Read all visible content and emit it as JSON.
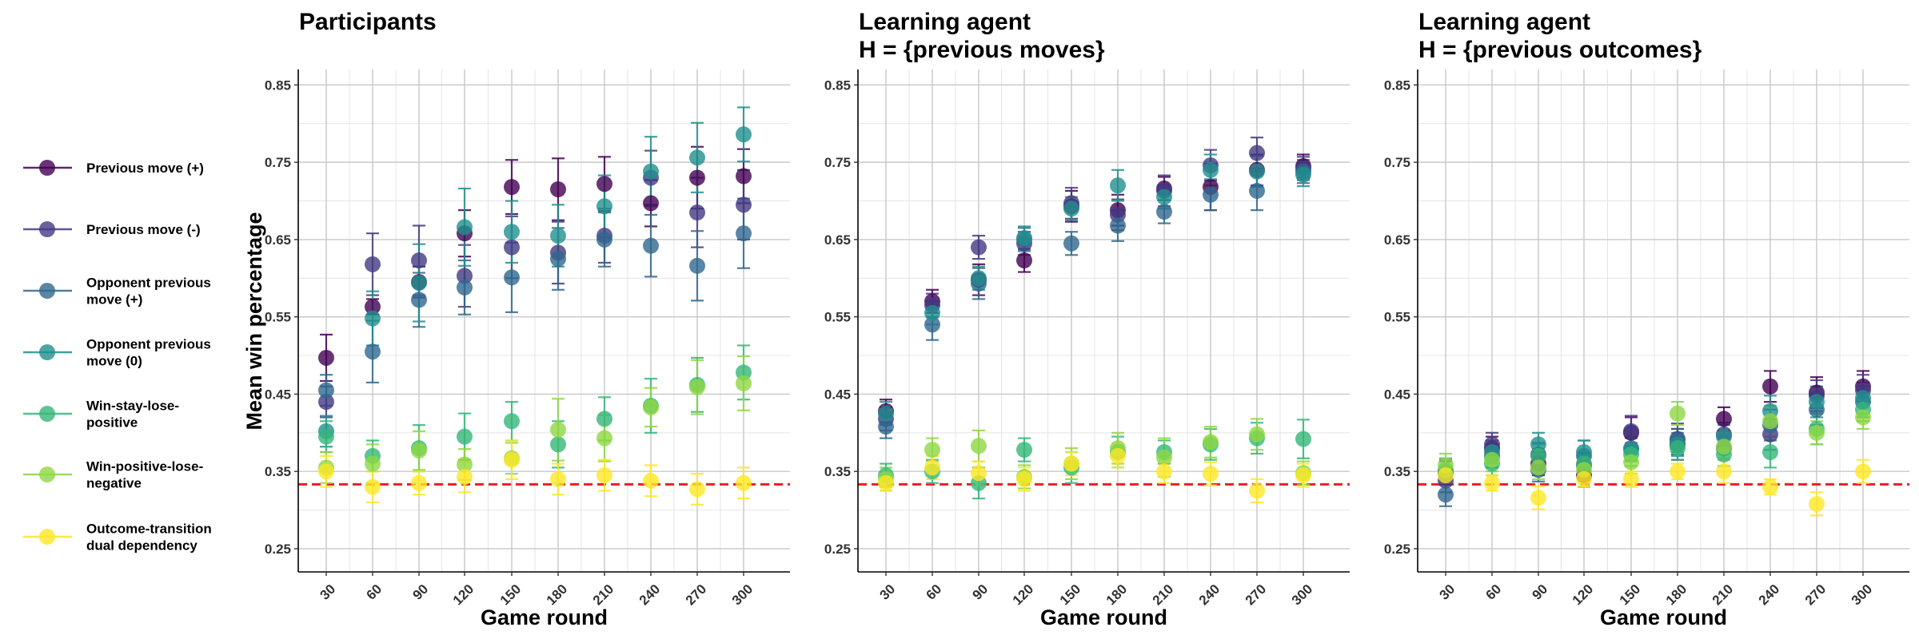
{
  "ylabel": "Mean win percentage",
  "reference_line": {
    "value": 0.3333,
    "color": "#ee1c24"
  },
  "legend": [
    {
      "lines": [
        "Previous move (+)"
      ],
      "color": "#440154"
    },
    {
      "lines": [
        "Previous move (-)"
      ],
      "color": "#443a83"
    },
    {
      "lines": [
        "Opponent previous",
        "move (+)"
      ],
      "color": "#31688e"
    },
    {
      "lines": [
        "Opponent previous",
        "move (0)"
      ],
      "color": "#21908d"
    },
    {
      "lines": [
        "Win-stay-lose-",
        "positive"
      ],
      "color": "#35b779"
    },
    {
      "lines": [
        "Win-positive-lose-",
        "negative"
      ],
      "color": "#8fd744"
    },
    {
      "lines": [
        "Outcome-transition",
        "dual dependency"
      ],
      "color": "#fde725"
    }
  ],
  "chart_data": [
    {
      "type": "scatter",
      "title": [
        "Participants"
      ],
      "xlabel": "Game round",
      "ylabel": "Mean win percentage",
      "x": [
        30,
        60,
        90,
        120,
        150,
        180,
        210,
        240,
        270,
        300
      ],
      "ylim": [
        0.22,
        0.87
      ],
      "yticks": [
        0.25,
        0.35,
        0.45,
        0.55,
        0.65,
        0.75,
        0.85
      ],
      "grid": true,
      "series": [
        {
          "name": "Previous move (+)",
          "values": [
            0.497,
            0.563,
            0.595,
            0.658,
            0.718,
            0.715,
            0.722,
            0.697,
            0.73,
            0.732
          ],
          "error": [
            0.03,
            0.01,
            0.02,
            0.03,
            0.035,
            0.04,
            0.035,
            0.03,
            0.04,
            0.035
          ]
        },
        {
          "name": "Previous move (-)",
          "values": [
            0.44,
            0.618,
            0.623,
            0.603,
            0.64,
            0.633,
            0.655,
            0.73,
            0.685,
            0.695
          ],
          "error": [
            0.02,
            0.04,
            0.045,
            0.04,
            0.04,
            0.04,
            0.035,
            0.035,
            0.045,
            0.045
          ]
        },
        {
          "name": "Opponent previous move (+)",
          "values": [
            0.455,
            0.505,
            0.572,
            0.588,
            0.601,
            0.625,
            0.65,
            0.642,
            0.616,
            0.658
          ],
          "error": [
            0.02,
            0.04,
            0.035,
            0.035,
            0.045,
            0.04,
            0.035,
            0.04,
            0.045,
            0.045
          ]
        },
        {
          "name": "Opponent previous move (0)",
          "values": [
            0.402,
            0.548,
            0.594,
            0.666,
            0.66,
            0.655,
            0.693,
            0.738,
            0.756,
            0.786
          ],
          "error": [
            0.02,
            0.035,
            0.05,
            0.05,
            0.04,
            0.04,
            0.04,
            0.045,
            0.045,
            0.035
          ]
        },
        {
          "name": "Win-stay-lose-positive",
          "values": [
            0.395,
            0.37,
            0.38,
            0.395,
            0.415,
            0.385,
            0.418,
            0.435,
            0.462,
            0.478
          ],
          "error": [
            0.02,
            0.02,
            0.03,
            0.03,
            0.025,
            0.03,
            0.028,
            0.035,
            0.035,
            0.035
          ]
        },
        {
          "name": "Win-positive-lose-negative",
          "values": [
            0.355,
            0.36,
            0.377,
            0.359,
            0.367,
            0.404,
            0.393,
            0.433,
            0.459,
            0.464
          ],
          "error": [
            0.02,
            0.025,
            0.025,
            0.02,
            0.02,
            0.04,
            0.03,
            0.025,
            0.035,
            0.035
          ]
        },
        {
          "name": "Outcome-transition dual dependency",
          "values": [
            0.35,
            0.33,
            0.335,
            0.343,
            0.365,
            0.34,
            0.345,
            0.338,
            0.327,
            0.335
          ],
          "error": [
            0.02,
            0.02,
            0.015,
            0.02,
            0.025,
            0.02,
            0.02,
            0.02,
            0.02,
            0.02
          ]
        }
      ]
    },
    {
      "type": "scatter",
      "title": [
        "Learning agent",
        "H = {previous moves}"
      ],
      "xlabel": "Game round",
      "ylabel": "",
      "x": [
        30,
        60,
        90,
        120,
        150,
        180,
        210,
        240,
        270,
        300
      ],
      "ylim": [
        0.22,
        0.87
      ],
      "yticks": [
        0.25,
        0.35,
        0.45,
        0.55,
        0.65,
        0.75,
        0.85
      ],
      "grid": true,
      "series": [
        {
          "name": "Previous move (+)",
          "values": [
            0.428,
            0.57,
            0.598,
            0.623,
            0.693,
            0.688,
            0.716,
            0.718,
            0.74,
            0.745
          ],
          "error": [
            0.015,
            0.015,
            0.02,
            0.015,
            0.02,
            0.02,
            0.015,
            0.03,
            0.02,
            0.015
          ]
        },
        {
          "name": "Previous move (-)",
          "values": [
            0.418,
            0.565,
            0.64,
            0.645,
            0.697,
            0.682,
            0.713,
            0.746,
            0.762,
            0.742
          ],
          "error": [
            0.015,
            0.015,
            0.015,
            0.015,
            0.02,
            0.02,
            0.02,
            0.02,
            0.02,
            0.015
          ]
        },
        {
          "name": "Opponent previous move (+)",
          "values": [
            0.408,
            0.54,
            0.593,
            0.65,
            0.645,
            0.668,
            0.686,
            0.708,
            0.713,
            0.738
          ],
          "error": [
            0.015,
            0.02,
            0.02,
            0.015,
            0.015,
            0.02,
            0.015,
            0.02,
            0.025,
            0.015
          ]
        },
        {
          "name": "Opponent previous move (0)",
          "values": [
            0.425,
            0.555,
            0.6,
            0.652,
            0.69,
            0.72,
            0.705,
            0.74,
            0.738,
            0.734
          ],
          "error": [
            0.015,
            0.015,
            0.015,
            0.015,
            0.015,
            0.02,
            0.015,
            0.02,
            0.02,
            0.015
          ]
        },
        {
          "name": "Win-stay-lose-positive",
          "values": [
            0.345,
            0.35,
            0.335,
            0.378,
            0.355,
            0.375,
            0.375,
            0.385,
            0.393,
            0.392
          ],
          "error": [
            0.015,
            0.015,
            0.02,
            0.015,
            0.02,
            0.02,
            0.015,
            0.02,
            0.02,
            0.025
          ]
        },
        {
          "name": "Win-positive-lose-negative",
          "values": [
            0.34,
            0.378,
            0.383,
            0.343,
            0.36,
            0.38,
            0.368,
            0.388,
            0.398,
            0.348
          ],
          "error": [
            0.015,
            0.015,
            0.02,
            0.015,
            0.02,
            0.02,
            0.025,
            0.02,
            0.02,
            0.015
          ]
        },
        {
          "name": "Outcome-transition dual dependency",
          "values": [
            0.335,
            0.355,
            0.348,
            0.34,
            0.36,
            0.37,
            0.35,
            0.347,
            0.325,
            0.345
          ],
          "error": [
            0.01,
            0.015,
            0.015,
            0.015,
            0.015,
            0.015,
            0.015,
            0.015,
            0.015,
            0.015
          ]
        }
      ]
    },
    {
      "type": "scatter",
      "title": [
        "Learning agent",
        "H = {previous outcomes}"
      ],
      "xlabel": "Game round",
      "ylabel": "",
      "x": [
        30,
        60,
        90,
        120,
        150,
        180,
        210,
        240,
        270,
        300
      ],
      "ylim": [
        0.22,
        0.87
      ],
      "yticks": [
        0.25,
        0.35,
        0.45,
        0.55,
        0.65,
        0.75,
        0.85
      ],
      "grid": true,
      "series": [
        {
          "name": "Previous move (+)",
          "values": [
            0.348,
            0.38,
            0.36,
            0.345,
            0.4,
            0.385,
            0.418,
            0.46,
            0.452,
            0.46
          ],
          "error": [
            0.015,
            0.015,
            0.015,
            0.015,
            0.02,
            0.02,
            0.015,
            0.02,
            0.02,
            0.02
          ]
        },
        {
          "name": "Previous move (-)",
          "values": [
            0.338,
            0.385,
            0.372,
            0.358,
            0.402,
            0.392,
            0.398,
            0.398,
            0.448,
            0.455
          ],
          "error": [
            0.015,
            0.015,
            0.015,
            0.015,
            0.02,
            0.02,
            0.015,
            0.02,
            0.02,
            0.02
          ]
        },
        {
          "name": "Opponent previous move (+)",
          "values": [
            0.32,
            0.37,
            0.352,
            0.37,
            0.38,
            0.39,
            0.38,
            0.41,
            0.43,
            0.44
          ],
          "error": [
            0.015,
            0.015,
            0.015,
            0.02,
            0.015,
            0.015,
            0.015,
            0.02,
            0.02,
            0.02
          ]
        },
        {
          "name": "Opponent previous move (0)",
          "values": [
            0.35,
            0.375,
            0.385,
            0.375,
            0.378,
            0.385,
            0.395,
            0.428,
            0.44,
            0.445
          ],
          "error": [
            0.015,
            0.015,
            0.015,
            0.015,
            0.015,
            0.015,
            0.015,
            0.02,
            0.02,
            0.02
          ]
        },
        {
          "name": "Win-stay-lose-positive",
          "values": [
            0.352,
            0.36,
            0.37,
            0.36,
            0.372,
            0.38,
            0.372,
            0.375,
            0.405,
            0.43
          ],
          "error": [
            0.015,
            0.015,
            0.015,
            0.015,
            0.015,
            0.015,
            0.015,
            0.02,
            0.02,
            0.015
          ]
        },
        {
          "name": "Win-positive-lose-negative",
          "values": [
            0.358,
            0.365,
            0.355,
            0.352,
            0.362,
            0.425,
            0.382,
            0.415,
            0.4,
            0.42
          ],
          "error": [
            0.015,
            0.015,
            0.015,
            0.015,
            0.015,
            0.015,
            0.015,
            0.02,
            0.015,
            0.015
          ]
        },
        {
          "name": "Outcome-transition dual dependency",
          "values": [
            0.345,
            0.335,
            0.316,
            0.34,
            0.34,
            0.35,
            0.35,
            0.33,
            0.308,
            0.35
          ],
          "error": [
            0.01,
            0.01,
            0.015,
            0.01,
            0.01,
            0.01,
            0.015,
            0.01,
            0.015,
            0.015
          ]
        }
      ]
    }
  ]
}
